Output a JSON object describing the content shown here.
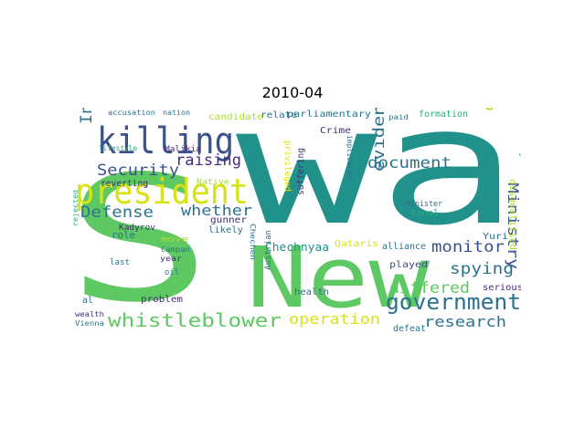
{
  "title": "2010-04",
  "colors": {
    "teal": "#21918c",
    "green": "#5ec962",
    "navy": "#3b528b",
    "purple": "#472d7b",
    "yellow": "#d8e219",
    "lime": "#addc30",
    "cyan": "#2c728e",
    "sea": "#28ae80"
  },
  "words": [
    {
      "text": "wa",
      "color": "teal"
    },
    {
      "text": "New",
      "color": "green"
    },
    {
      "text": "S",
      "color": "green"
    },
    {
      "text": "killing",
      "color": "navy"
    },
    {
      "text": "president",
      "color": "yellow"
    },
    {
      "text": "government",
      "color": "cyan"
    },
    {
      "text": "whistleblower",
      "color": "green"
    },
    {
      "text": "Security",
      "color": "navy"
    },
    {
      "text": "raising",
      "color": "purple"
    },
    {
      "text": "Defense",
      "color": "cyan"
    },
    {
      "text": "whether",
      "color": "cyan"
    },
    {
      "text": "Indian",
      "color": "cyan"
    },
    {
      "text": "document",
      "color": "cyan"
    },
    {
      "text": "evidence",
      "color": "cyan"
    },
    {
      "text": "question",
      "color": "lime"
    },
    {
      "text": "Ministry",
      "color": "navy"
    },
    {
      "text": "monitor",
      "color": "navy"
    },
    {
      "text": "spying",
      "color": "cyan"
    },
    {
      "text": "differed",
      "color": "green"
    },
    {
      "text": "operation",
      "color": "yellow"
    },
    {
      "text": "research",
      "color": "cyan"
    },
    {
      "text": "Chechnyaa",
      "color": "teal"
    },
    {
      "text": "Qataris",
      "color": "yellow"
    },
    {
      "text": "alliance",
      "color": "cyan"
    },
    {
      "text": "played",
      "color": "navy"
    },
    {
      "text": "serious",
      "color": "purple"
    },
    {
      "text": "Yuri",
      "color": "cyan"
    },
    {
      "text": "disqualified",
      "color": "lime"
    },
    {
      "text": "delay",
      "color": "sea"
    },
    {
      "text": "Minister",
      "color": "cyan"
    },
    {
      "text": "Canal",
      "color": "sea"
    },
    {
      "text": "implicated",
      "color": "cyan"
    },
    {
      "text": "suffering",
      "color": "purple"
    },
    {
      "text": "privileged",
      "color": "yellow"
    },
    {
      "text": "Crime",
      "color": "purple"
    },
    {
      "text": "parliamentary",
      "color": "cyan"
    },
    {
      "text": "relate",
      "color": "cyan"
    },
    {
      "text": "candidate",
      "color": "lime"
    },
    {
      "text": "formation",
      "color": "sea"
    },
    {
      "text": "paid",
      "color": "cyan"
    },
    {
      "text": "accusation",
      "color": "cyan"
    },
    {
      "text": "nation",
      "color": "cyan"
    },
    {
      "text": "lifestyle",
      "color": "sea"
    },
    {
      "text": "Malikia",
      "color": "purple"
    },
    {
      "text": "reverting",
      "color": "purple"
    },
    {
      "text": "Native",
      "color": "lime"
    },
    {
      "text": "Kadyrov",
      "color": "purple"
    },
    {
      "text": "gunner",
      "color": "purple"
    },
    {
      "text": "likely",
      "color": "cyan"
    },
    {
      "text": "role",
      "color": "cyan"
    },
    {
      "text": "move",
      "color": "lime"
    },
    {
      "text": "Campan",
      "color": "cyan"
    },
    {
      "text": "year",
      "color": "purple"
    },
    {
      "text": "last",
      "color": "cyan"
    },
    {
      "text": "oil",
      "color": "cyan"
    },
    {
      "text": "al",
      "color": "cyan"
    },
    {
      "text": "problem",
      "color": "purple"
    },
    {
      "text": "wealth",
      "color": "purple"
    },
    {
      "text": "Vienna",
      "color": "cyan"
    },
    {
      "text": "rejected",
      "color": "sea"
    },
    {
      "text": "Chechen",
      "color": "cyan"
    },
    {
      "text": "Austrian",
      "color": "cyan"
    },
    {
      "text": "health",
      "color": "cyan"
    },
    {
      "text": "defeat",
      "color": "cyan"
    }
  ]
}
